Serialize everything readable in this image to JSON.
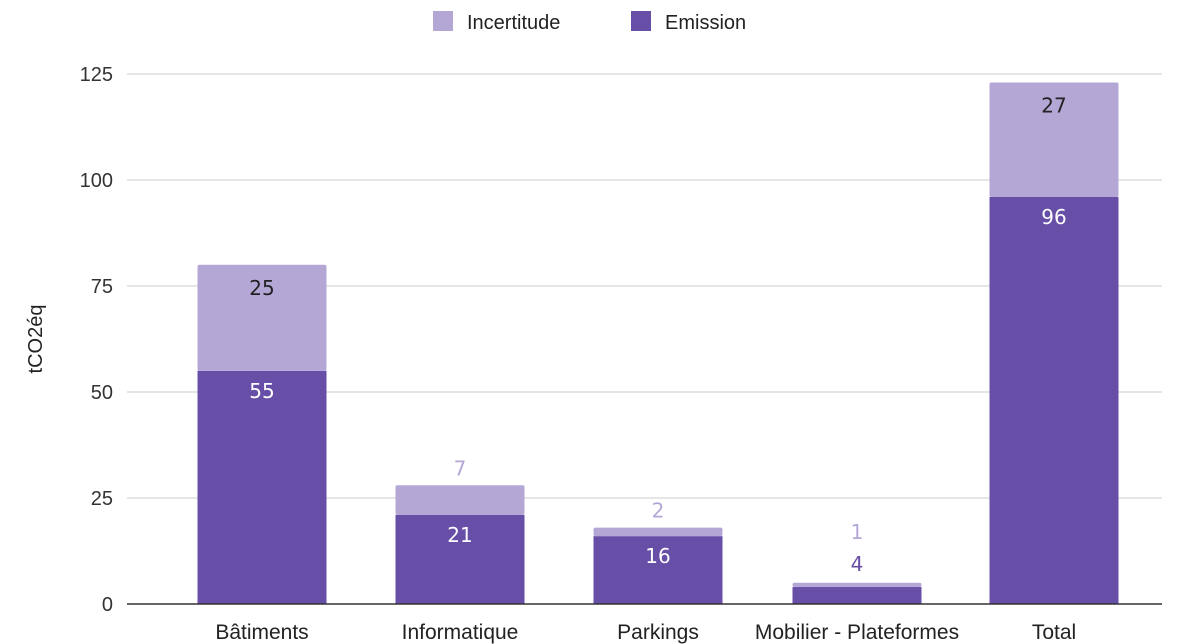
{
  "chart_data": {
    "type": "bar",
    "stacked": true,
    "title": "",
    "xlabel": "",
    "ylabel": "tCO2éq",
    "ylim": [
      0,
      125
    ],
    "yticks": [
      0,
      25,
      50,
      75,
      100,
      125
    ],
    "categories": [
      "Bâtiments",
      "Informatique",
      "Parkings",
      "Mobilier - Plateformes",
      "Total"
    ],
    "series": [
      {
        "name": "Emission",
        "color": "#674ea7",
        "values": [
          55,
          21,
          16,
          4,
          96
        ],
        "labels": [
          "55",
          "21",
          "16",
          "4",
          "96"
        ]
      },
      {
        "name": "Incertitude",
        "color": "#b4a7d6",
        "values": [
          25,
          7,
          2,
          1,
          27
        ],
        "labels": [
          "25",
          "7",
          "2",
          "1",
          "27"
        ]
      }
    ],
    "legend_order": [
      "Incertitude",
      "Emission"
    ],
    "legend_position": "top",
    "grid": true,
    "colors": {
      "gridline": "#cccccc",
      "baseline": "#333333",
      "label_inside_emission": "#ffffff",
      "label_inside_incertitude": "#222222"
    }
  }
}
